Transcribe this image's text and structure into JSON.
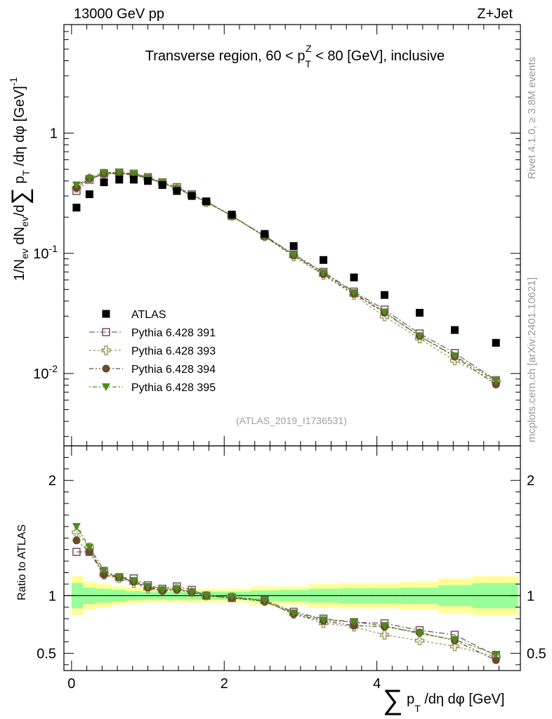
{
  "header": {
    "left": "13000 GeV pp",
    "right": "Z+Jet"
  },
  "side_labels": {
    "rivet": "Rivet 4.1.0, ≥ 3.8M events",
    "mcplots": "mcplots.cern.ch [arXiv:2401.10621]"
  },
  "colors": {
    "atlas": "#000000",
    "p391": "#7a5a6e",
    "p393": "#9c9a5a",
    "p394": "#6b4a2e",
    "p395": "#4e8a1e",
    "band_yellow": "#ffff99",
    "band_green": "#99ff99"
  },
  "chart_data": [
    {
      "type": "scatter",
      "title": "Transverse region, 60 < p_T^Z < 80 [GeV], inclusive",
      "ylabel": "1/N_ev dN_ev/d∑ p_T /dη dφ [GeV]^-1",
      "yscale": "log",
      "ylim": [
        0.0025,
        8
      ],
      "xlim": [
        -0.1,
        5.88
      ],
      "analysis_label": "(ATLAS_2019_I1736531)",
      "y_tick_labels": [
        "10^-2",
        "10^-1",
        "1"
      ],
      "x": [
        0.065,
        0.235,
        0.425,
        0.625,
        0.815,
        1.0,
        1.19,
        1.38,
        1.575,
        1.765,
        2.1,
        2.53,
        2.91,
        3.3,
        3.7,
        4.1,
        4.56,
        5.02,
        5.56
      ],
      "series": [
        {
          "name": "ATLAS",
          "key": "atlas",
          "marker": "square",
          "values": [
            0.24,
            0.31,
            0.39,
            0.41,
            0.41,
            0.4,
            0.37,
            0.33,
            0.3,
            0.27,
            0.21,
            0.145,
            0.115,
            0.088,
            0.063,
            0.045,
            0.032,
            0.023,
            0.018
          ]
        },
        {
          "name": "Pythia 6.428 391",
          "key": "p391",
          "marker": "open-square",
          "values": [
            0.33,
            0.41,
            0.46,
            0.47,
            0.46,
            0.43,
            0.39,
            0.355,
            0.31,
            0.27,
            0.205,
            0.14,
            0.098,
            0.07,
            0.048,
            0.034,
            0.0215,
            0.0148,
            0.0088
          ]
        },
        {
          "name": "Pythia 6.428 393",
          "key": "p393",
          "marker": "open-cross",
          "values": [
            0.35,
            0.42,
            0.46,
            0.465,
            0.45,
            0.42,
            0.385,
            0.345,
            0.305,
            0.265,
            0.205,
            0.138,
            0.094,
            0.066,
            0.045,
            0.0298,
            0.0195,
            0.0128,
            0.0086
          ]
        },
        {
          "name": "Pythia 6.428 394",
          "key": "p394",
          "marker": "circle",
          "values": [
            0.35,
            0.42,
            0.46,
            0.46,
            0.45,
            0.42,
            0.385,
            0.345,
            0.305,
            0.27,
            0.205,
            0.138,
            0.096,
            0.067,
            0.046,
            0.032,
            0.0205,
            0.0138,
            0.0081
          ]
        },
        {
          "name": "Pythia 6.428 395",
          "key": "p395",
          "marker": "triangle-down",
          "values": [
            0.37,
            0.42,
            0.47,
            0.47,
            0.455,
            0.425,
            0.385,
            0.345,
            0.305,
            0.27,
            0.205,
            0.138,
            0.097,
            0.069,
            0.047,
            0.0325,
            0.0205,
            0.014,
            0.0087
          ]
        }
      ]
    },
    {
      "type": "scatter",
      "ylabel": "Ratio to ATLAS",
      "xlabel": "∑ p_T /dη dφ [GeV]",
      "ylim": [
        0.35,
        2.3
      ],
      "xlim": [
        -0.1,
        5.88
      ],
      "x_tick_labels": [
        "0",
        "2",
        "4"
      ],
      "y_tick_labels": [
        "0.5",
        "1",
        "2"
      ],
      "bin_edges": [
        0.0,
        0.15,
        0.32,
        0.53,
        0.72,
        0.91,
        1.09,
        1.28,
        1.47,
        1.67,
        1.86,
        2.34,
        2.72,
        3.1,
        3.5,
        3.9,
        4.3,
        4.8,
        5.25,
        5.85
      ],
      "band_yellow": [
        0.17,
        0.12,
        0.1,
        0.08,
        0.07,
        0.06,
        0.06,
        0.06,
        0.06,
        0.06,
        0.06,
        0.08,
        0.08,
        0.1,
        0.11,
        0.11,
        0.12,
        0.15,
        0.17
      ],
      "band_green": [
        0.11,
        0.07,
        0.06,
        0.05,
        0.04,
        0.035,
        0.035,
        0.035,
        0.035,
        0.035,
        0.035,
        0.045,
        0.05,
        0.06,
        0.065,
        0.065,
        0.07,
        0.09,
        0.11
      ],
      "x": [
        0.065,
        0.235,
        0.425,
        0.625,
        0.815,
        1.0,
        1.19,
        1.38,
        1.575,
        1.765,
        2.1,
        2.53,
        2.91,
        3.3,
        3.7,
        4.1,
        4.56,
        5.02,
        5.56
      ],
      "series": [
        {
          "name": "Pythia 6.428 391",
          "key": "p391",
          "marker": "open-square",
          "values": [
            1.38,
            1.38,
            1.2,
            1.16,
            1.15,
            1.09,
            1.06,
            1.08,
            1.05,
            1.0,
            0.98,
            0.96,
            0.86,
            0.8,
            0.77,
            0.76,
            0.7,
            0.66,
            0.48
          ]
        },
        {
          "name": "Pythia 6.428 393",
          "key": "p393",
          "marker": "open-cross",
          "values": [
            1.55,
            1.42,
            1.18,
            1.15,
            1.11,
            1.06,
            1.05,
            1.06,
            1.03,
            1.0,
            0.99,
            0.95,
            0.84,
            0.76,
            0.73,
            0.66,
            0.61,
            0.56,
            0.47
          ]
        },
        {
          "name": "Pythia 6.428 394",
          "key": "p394",
          "marker": "circle",
          "values": [
            1.48,
            1.38,
            1.18,
            1.16,
            1.12,
            1.07,
            1.04,
            1.05,
            1.03,
            1.0,
            0.98,
            0.95,
            0.84,
            0.78,
            0.74,
            0.73,
            0.68,
            0.61,
            0.44
          ]
        },
        {
          "name": "Pythia 6.428 395",
          "key": "p395",
          "marker": "triangle-down",
          "values": [
            1.6,
            1.42,
            1.22,
            1.16,
            1.13,
            1.08,
            1.05,
            1.06,
            1.03,
            1.0,
            0.99,
            0.96,
            0.85,
            0.79,
            0.77,
            0.74,
            0.67,
            0.62,
            0.49
          ]
        }
      ]
    }
  ]
}
